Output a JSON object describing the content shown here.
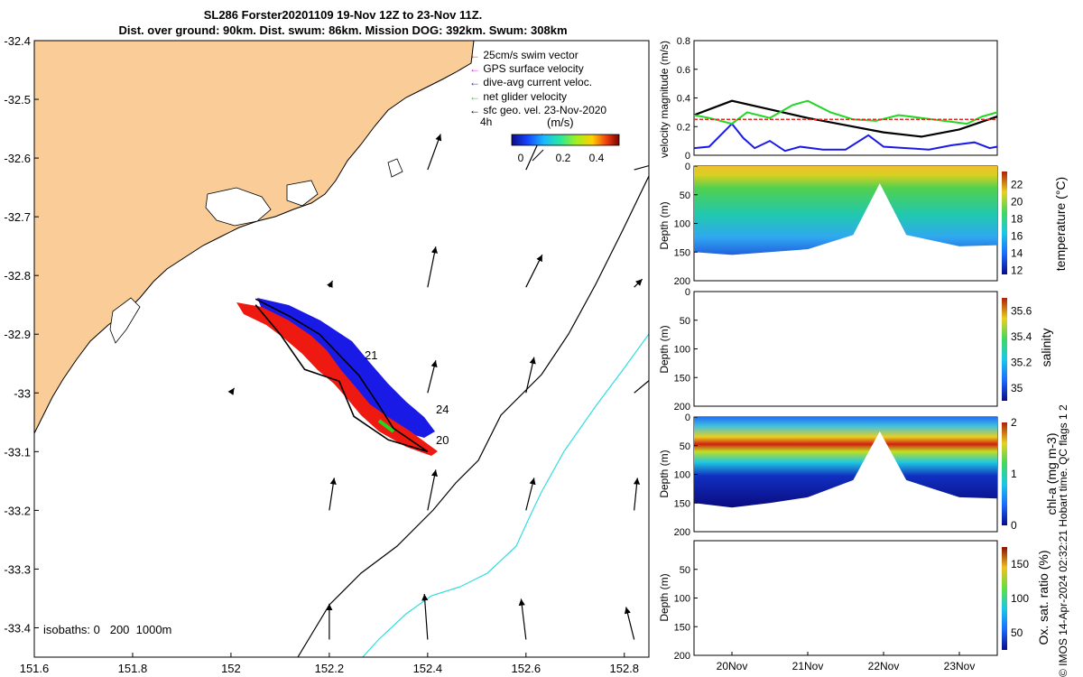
{
  "title": {
    "line1": "SL286 Forster20201109 19-Nov 12Z to 23-Nov 11Z.",
    "line2": "Dist. over ground: 90km. Dist. swum: 86km. Mission DOG: 392km. Swum: 308km"
  },
  "colors": {
    "land": "#f9cc98",
    "swim_vector": "#e8281e",
    "gps_velocity": "#e020e0",
    "current": "#1a1ae6",
    "net_glider": "#22d622",
    "geo_velocity": "#000000",
    "isobath_200": "#000000",
    "isobath_1000": "#33dddd"
  },
  "map": {
    "legend": {
      "swim": "25cm/s swim vector",
      "gps": "GPS surface velocity",
      "dive": "dive-avg current veloc.",
      "net": "net glider velocity",
      "geo": "sfc geo. vel. 23-Nov-2020"
    },
    "time_label": "4h",
    "colorbar": {
      "label": "(m/s)",
      "ticks": [
        "0",
        "0.2",
        "0.4"
      ],
      "range": [
        0,
        0.5
      ]
    },
    "track_labels": [
      "21",
      "24",
      "20"
    ],
    "isobaths_label": "isobaths: 0   200  1000m"
  },
  "chart_data": [
    {
      "type": "scatter",
      "title": "",
      "xlabel": "",
      "ylabel": "",
      "xlim": [
        151.6,
        152.85
      ],
      "ylim": [
        -33.45,
        -32.4
      ],
      "x_ticks": [
        "151.6",
        "151.8",
        "152",
        "152.2",
        "152.4",
        "152.6",
        "152.8"
      ],
      "y_ticks": [
        "-32.4",
        "-32.5",
        "-32.6",
        "-32.7",
        "-32.8",
        "-32.9",
        "-33",
        "-33.1",
        "-33.2",
        "-33.3",
        "-33.4"
      ],
      "glider_track": [
        {
          "lon": 152.05,
          "lat": -32.84
        },
        {
          "lon": 152.12,
          "lat": -32.87
        },
        {
          "lon": 152.18,
          "lat": -32.9
        },
        {
          "lon": 152.26,
          "lat": -32.97
        },
        {
          "lon": 152.3,
          "lat": -33.02
        },
        {
          "lon": 152.33,
          "lat": -33.06
        },
        {
          "lon": 152.4,
          "lat": -33.1
        },
        {
          "lon": 152.32,
          "lat": -33.08
        },
        {
          "lon": 152.25,
          "lat": -33.04
        },
        {
          "lon": 152.22,
          "lat": -32.98
        },
        {
          "lon": 152.15,
          "lat": -32.96
        },
        {
          "lon": 152.1,
          "lat": -32.9
        },
        {
          "lon": 152.05,
          "lat": -32.85
        }
      ],
      "geo_velocity_vectors": [
        {
          "lon": 152.4,
          "lat": -32.62,
          "u": 0.08,
          "v": 0.22
        },
        {
          "lon": 152.6,
          "lat": -32.62,
          "u": 0.1,
          "v": 0.22
        },
        {
          "lon": 152.82,
          "lat": -32.62,
          "u": 0.18,
          "v": 0.05
        },
        {
          "lon": 152.2,
          "lat": -32.82,
          "u": 0.02,
          "v": 0.04
        },
        {
          "lon": 152.4,
          "lat": -32.82,
          "u": 0.05,
          "v": 0.25
        },
        {
          "lon": 152.6,
          "lat": -32.82,
          "u": 0.1,
          "v": 0.2
        },
        {
          "lon": 152.82,
          "lat": -32.82,
          "u": 0.05,
          "v": 0.05
        },
        {
          "lon": 152.0,
          "lat": -33.0,
          "u": 0.02,
          "v": 0.03
        },
        {
          "lon": 152.4,
          "lat": -33.0,
          "u": 0.05,
          "v": 0.2
        },
        {
          "lon": 152.6,
          "lat": -33.0,
          "u": 0.05,
          "v": 0.22
        },
        {
          "lon": 152.82,
          "lat": -33.0,
          "u": 0.18,
          "v": 0.15
        },
        {
          "lon": 152.2,
          "lat": -33.2,
          "u": 0.03,
          "v": 0.2
        },
        {
          "lon": 152.4,
          "lat": -33.2,
          "u": 0.05,
          "v": 0.25
        },
        {
          "lon": 152.6,
          "lat": -33.2,
          "u": 0.05,
          "v": 0.2
        },
        {
          "lon": 152.82,
          "lat": -33.2,
          "u": 0.02,
          "v": 0.2
        },
        {
          "lon": 152.2,
          "lat": -33.42,
          "u": 0.0,
          "v": 0.22
        },
        {
          "lon": 152.4,
          "lat": -33.42,
          "u": -0.02,
          "v": 0.28
        },
        {
          "lon": 152.6,
          "lat": -33.42,
          "u": -0.03,
          "v": 0.25
        },
        {
          "lon": 152.82,
          "lat": -33.42,
          "u": -0.05,
          "v": 0.2
        }
      ]
    },
    {
      "type": "line",
      "title": "",
      "xlabel": "",
      "ylabel": "velocity magnitude (m/s)",
      "xlim": [
        19.5,
        23.5
      ],
      "ylim": [
        0,
        0.8
      ],
      "y_ticks": [
        "0",
        "0.2",
        "0.4",
        "0.6",
        "0.8"
      ],
      "series": [
        {
          "values": [
            [
              19.5,
              0.28
            ],
            [
              20,
              0.38
            ],
            [
              20.5,
              0.32
            ],
            [
              21,
              0.26
            ],
            [
              21.5,
              0.21
            ],
            [
              22,
              0.16
            ],
            [
              22.5,
              0.13
            ],
            [
              23,
              0.18
            ],
            [
              23.5,
              0.27
            ]
          ]
        },
        {
          "values": [
            [
              19.5,
              0.05
            ],
            [
              19.7,
              0.06
            ],
            [
              20.0,
              0.22
            ],
            [
              20.15,
              0.12
            ],
            [
              20.3,
              0.05
            ],
            [
              20.5,
              0.1
            ],
            [
              20.7,
              0.03
            ],
            [
              20.9,
              0.06
            ],
            [
              21.2,
              0.04
            ],
            [
              21.5,
              0.04
            ],
            [
              21.8,
              0.14
            ],
            [
              22.0,
              0.06
            ],
            [
              22.3,
              0.05
            ],
            [
              22.6,
              0.04
            ],
            [
              22.9,
              0.07
            ],
            [
              23.2,
              0.09
            ],
            [
              23.4,
              0.05
            ],
            [
              23.5,
              0.06
            ]
          ]
        },
        {
          "values": [
            [
              19.5,
              0.28
            ],
            [
              19.7,
              0.26
            ],
            [
              20.0,
              0.22
            ],
            [
              20.2,
              0.3
            ],
            [
              20.5,
              0.26
            ],
            [
              20.8,
              0.35
            ],
            [
              21.0,
              0.38
            ],
            [
              21.3,
              0.3
            ],
            [
              21.6,
              0.25
            ],
            [
              21.9,
              0.24
            ],
            [
              22.2,
              0.28
            ],
            [
              22.5,
              0.26
            ],
            [
              22.8,
              0.24
            ],
            [
              23.1,
              0.22
            ],
            [
              23.3,
              0.27
            ],
            [
              23.5,
              0.3
            ]
          ]
        },
        {
          "values": [
            [
              19.5,
              0.25
            ],
            [
              23.5,
              0.25
            ]
          ]
        }
      ]
    },
    {
      "type": "heatmap",
      "title": "",
      "xlabel": "",
      "ylabel": "Depth (m)",
      "y_ticks": [
        "0",
        "50",
        "100",
        "150",
        "200"
      ],
      "colorbar_label": "temperature (°C)",
      "colorbar_ticks": [
        "12",
        "14",
        "16",
        "18",
        "20",
        "22"
      ],
      "range": [
        11.5,
        23.5
      ],
      "max_depth_profile": [
        [
          19.5,
          150
        ],
        [
          20,
          155
        ],
        [
          20.5,
          150
        ],
        [
          21,
          145
        ],
        [
          21.6,
          120
        ],
        [
          21.95,
          30
        ],
        [
          22.3,
          120
        ],
        [
          23,
          140
        ],
        [
          23.5,
          138
        ]
      ],
      "layers": [
        {
          "depth": 0,
          "value": 22.5
        },
        {
          "depth": 20,
          "value": 21.5
        },
        {
          "depth": 50,
          "value": 19
        },
        {
          "depth": 90,
          "value": 17
        },
        {
          "depth": 130,
          "value": 15
        }
      ]
    },
    {
      "type": "heatmap",
      "title": "",
      "xlabel": "",
      "ylabel": "Depth (m)",
      "y_ticks": [
        "0",
        "50",
        "100",
        "150",
        "200"
      ],
      "colorbar_label": "salinity",
      "colorbar_ticks": [
        "35",
        "35.2",
        "35.4",
        "35.6"
      ],
      "range": [
        34.9,
        35.7
      ],
      "qc_note": "QC flags 1  2"
    },
    {
      "type": "heatmap",
      "title": "",
      "xlabel": "",
      "ylabel": "Depth (m)",
      "y_ticks": [
        "0",
        "50",
        "100",
        "150",
        "200"
      ],
      "colorbar_label": "chl-a (mg m-3)",
      "colorbar_ticks": [
        "0",
        "1",
        "2"
      ],
      "range": [
        0,
        2
      ],
      "x_ticks": [
        "20Nov",
        "21Nov",
        "22Nov",
        "23Nov"
      ],
      "max_depth_profile": [
        [
          19.5,
          150
        ],
        [
          20,
          158
        ],
        [
          20.5,
          150
        ],
        [
          21,
          140
        ],
        [
          21.6,
          110
        ],
        [
          21.95,
          25
        ],
        [
          22.3,
          110
        ],
        [
          23,
          140
        ],
        [
          23.5,
          142
        ]
      ]
    },
    {
      "type": "heatmap",
      "title": "",
      "xlabel": "",
      "ylabel": "Depth (m)",
      "y_ticks": [
        "50",
        "100",
        "150",
        "200"
      ],
      "colorbar_label": "Ox. sat. ratio (%)",
      "colorbar_ticks": [
        "50",
        "100",
        "150"
      ],
      "range": [
        25,
        175
      ],
      "x_ticks": [
        "20Nov",
        "21Nov",
        "22Nov",
        "23Nov"
      ]
    }
  ],
  "footer": {
    "credit": "© IMOS 14-Apr-2024 02:32:21 Hobart time. QC flags 1  2"
  }
}
